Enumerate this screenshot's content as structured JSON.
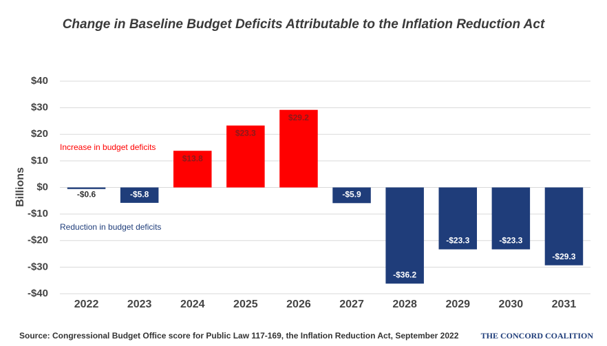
{
  "chart_data": {
    "type": "bar",
    "title": "Change in Baseline Budget Deficits Attributable to the Inflation Reduction Act",
    "y_label": "Billions",
    "categories": [
      "2022",
      "2023",
      "2024",
      "2025",
      "2026",
      "2027",
      "2028",
      "2029",
      "2030",
      "2031"
    ],
    "values": [
      -0.6,
      -5.8,
      13.8,
      23.3,
      29.2,
      -5.9,
      -36.2,
      -23.3,
      -23.3,
      -29.3
    ],
    "value_labels": [
      "-$0.6",
      "-$5.8",
      "$13.8",
      "$23.3",
      "$29.2",
      "-$5.9",
      "-$36.2",
      "-$23.3",
      "-$23.3",
      "-$29.3"
    ],
    "colors": [
      "#1f3d7a",
      "#1f3d7a",
      "#ff0000",
      "#ff0000",
      "#ff0000",
      "#1f3d7a",
      "#1f3d7a",
      "#1f3d7a",
      "#1f3d7a",
      "#1f3d7a"
    ],
    "ylim": [
      -40,
      40
    ],
    "yticks": [
      {
        "value": -40,
        "label": "-$40"
      },
      {
        "value": -30,
        "label": "-$30"
      },
      {
        "value": -20,
        "label": "-$20"
      },
      {
        "value": -10,
        "label": "-$10"
      },
      {
        "value": 0,
        "label": "$0"
      },
      {
        "value": 10,
        "label": "$10"
      },
      {
        "value": 20,
        "label": "$20"
      },
      {
        "value": 30,
        "label": "$30"
      },
      {
        "value": 40,
        "label": "$40"
      }
    ],
    "grid": true,
    "annotations": [
      "Increase in budget deficits",
      "Reduction in budget deficits"
    ],
    "source": "Source:  Congressional Budget Office score for Public Law 117-169, the Inflation Reduction Act, September 2022",
    "logo": "THE CONCORD COALITION"
  }
}
